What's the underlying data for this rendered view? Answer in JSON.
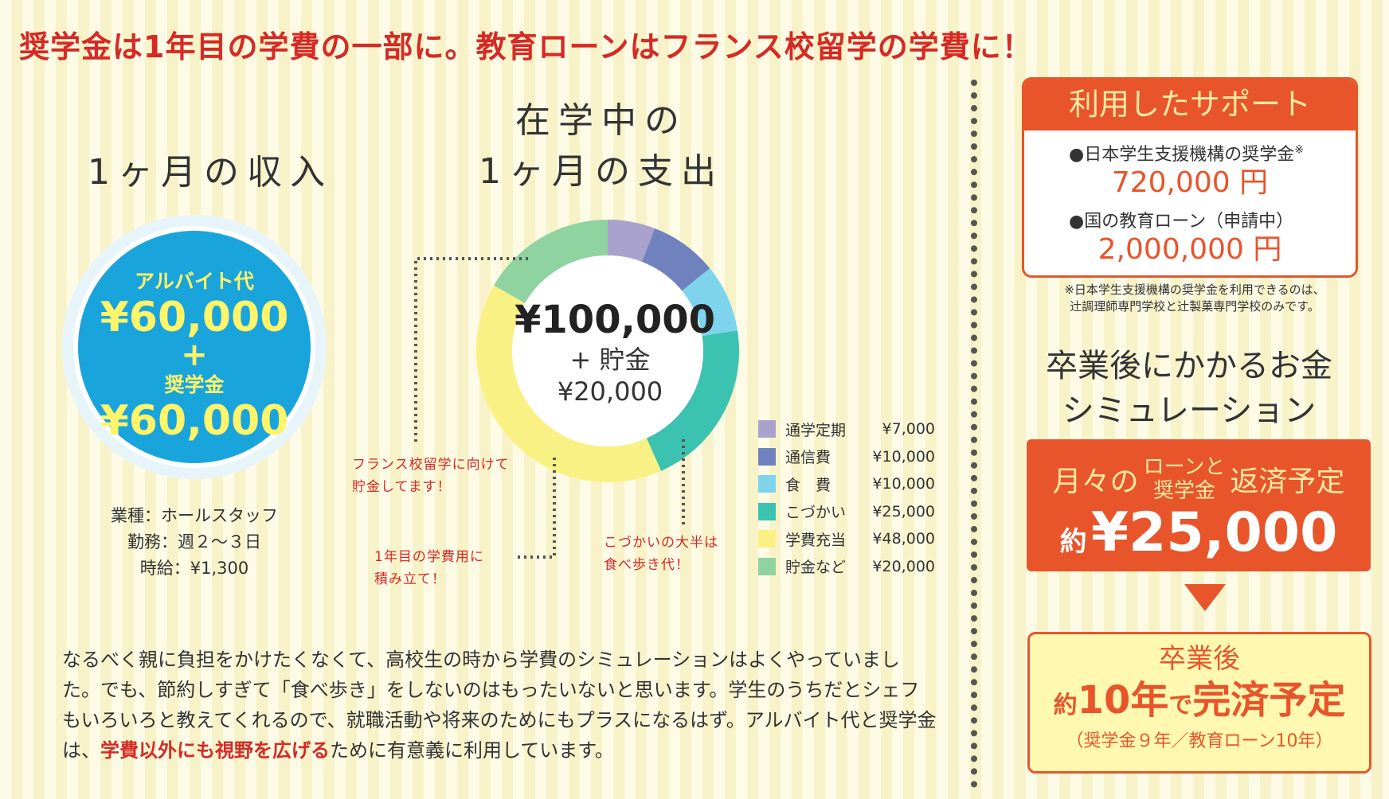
{
  "headline": "奨学金は1年目の学費の一部に。教育ローンはフランス校留学の学費に！",
  "income": {
    "title": "1ヶ月の収入",
    "parttime_label": "アルバイト代",
    "parttime_amount": "¥60,000",
    "plus": "+",
    "scholarship_label": "奨学金",
    "scholarship_amount": "¥60,000",
    "job_type": "業種：ホールスタッフ",
    "work_days": "勤務：週２〜３日",
    "hourly_wage": "時給：¥1,300"
  },
  "expenses": {
    "title_line1": "在学中の",
    "title_line2": "1ヶ月の支出",
    "total": "¥100,000",
    "savings_label": "+ 貯金",
    "savings_amount": "¥20,000",
    "note_france_1": "フランス校留学に向けて",
    "note_france_2": "貯金してます！",
    "note_tuition_1": "1年目の学費用に",
    "note_tuition_2": "積み立て！",
    "note_food_1": "こづかいの大半は",
    "note_food_2": "食べ歩き代！"
  },
  "chart_data": {
    "type": "pie",
    "title": "",
    "categories": [
      "通学定期",
      "通信費",
      "食　費",
      "こづかい",
      "学費充当",
      "貯金など"
    ],
    "values": [
      7000,
      10000,
      10000,
      25000,
      48000,
      20000
    ],
    "value_labels": [
      "¥7,000",
      "¥10,000",
      "¥10,000",
      "¥25,000",
      "¥48,000",
      "¥20,000"
    ],
    "colors": [
      "#a9a2cc",
      "#6f82bd",
      "#7dd4ec",
      "#3cc2b0",
      "#faf184",
      "#8fd3a0"
    ],
    "donut": true,
    "legend": "right"
  },
  "body_text": {
    "part1": "なるべく親に負担をかけたくなくて、高校生の時から学費のシミュレーションはよくやっていました。でも、節約しすぎて「食べ歩き」をしないのはもったいないと思います。学生のうちだとシェフもいろいろと教えてくれるので、就職活動や将来のためにもプラスになるはず。アルバイト代と奨学金は、",
    "highlight": "学費以外にも視野を広げる",
    "part2": "ために有意義に利用しています。"
  },
  "support": {
    "title": "利用したサポート",
    "item1_label": "●日本学生支援機構の奨学金",
    "item1_mark": "※",
    "item1_amount": "720,000 円",
    "item2_label": "●国の教育ローン（申請中）",
    "item2_amount": "2,000,000 円",
    "note_line1": "※日本学生支援機構の奨学金を利用できるのは、",
    "note_line2": "辻調理師専門学校と辻製菓専門学校のみです。"
  },
  "simulation": {
    "title_line1": "卒業後にかかるお金",
    "title_line2": "シミュレーション",
    "monthly_prefix": "月々の",
    "monthly_mid_1": "ローンと",
    "monthly_mid_2": "奨学金",
    "monthly_suffix": "返済予定",
    "approx": "約",
    "monthly_amount": "¥25,000",
    "colors": {
      "accent": "#e8552b",
      "highlight_bg": "#fff8b0"
    },
    "payoff_title": "卒業後",
    "payoff_approx": "約",
    "payoff_years": "10年",
    "payoff_de": "で",
    "payoff_done": "完済予定",
    "payoff_detail": "（奨学金９年／教育ローン10年）"
  }
}
